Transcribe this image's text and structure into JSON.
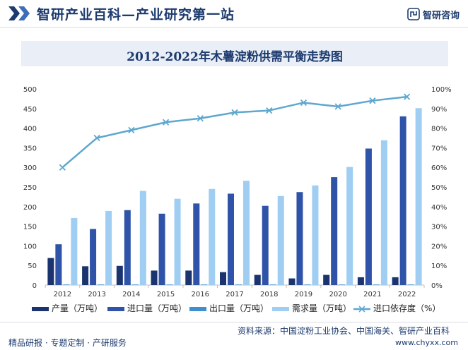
{
  "header": {
    "site_title": "智研产业百科—产业研究第一站",
    "brand": "智研咨询"
  },
  "footer": {
    "source": "资料来源：中国淀粉工业协会、中国海关、智研产业百科",
    "slogan": "精品研报 · 专题定制 · 产研服务",
    "url": "www.chyxx.com"
  },
  "colors": {
    "production": "#1b3470",
    "import": "#2f53a8",
    "export": "#3d8fd0",
    "demand": "#9fcef2",
    "dependency": "#5ea7cf"
  },
  "chart_data": {
    "type": "bar",
    "title": "2012-2022年木薯淀粉供需平衡走势图",
    "categories": [
      "2012",
      "2013",
      "2014",
      "2015",
      "2016",
      "2017",
      "2018",
      "2019",
      "2020",
      "2021",
      "2022"
    ],
    "ylim": [
      0,
      500
    ],
    "yticks": [
      "0",
      "50",
      "100",
      "150",
      "200",
      "250",
      "300",
      "350",
      "400",
      "450",
      "500"
    ],
    "y2lim": [
      0,
      100
    ],
    "y2ticks": [
      "0%",
      "10%",
      "20%",
      "30%",
      "40%",
      "50%",
      "60%",
      "70%",
      "80%",
      "90%",
      "100%"
    ],
    "grid": false,
    "legend_position": "bottom",
    "series": [
      {
        "name": "产量（万吨）",
        "kind": "bar",
        "values": [
          69,
          48,
          49,
          37,
          37,
          33,
          26,
          17,
          26,
          20,
          20
        ]
      },
      {
        "name": "进口量（万吨）",
        "kind": "bar",
        "values": [
          104,
          143,
          191,
          182,
          208,
          233,
          202,
          237,
          275,
          348,
          430
        ]
      },
      {
        "name": "出口量（万吨）",
        "kind": "bar",
        "values": [
          0.5,
          0.5,
          0.5,
          0.5,
          0.5,
          0.5,
          0.5,
          0.5,
          0.5,
          0.5,
          0.5
        ]
      },
      {
        "name": "需求量（万吨）",
        "kind": "bar",
        "values": [
          171,
          189,
          240,
          220,
          245,
          266,
          227,
          254,
          301,
          369,
          451
        ]
      },
      {
        "name": "进口依存度（%）",
        "kind": "line",
        "axis": "right",
        "values": [
          60,
          75,
          79,
          83,
          85,
          88,
          89,
          93,
          91,
          94,
          96
        ]
      }
    ]
  }
}
